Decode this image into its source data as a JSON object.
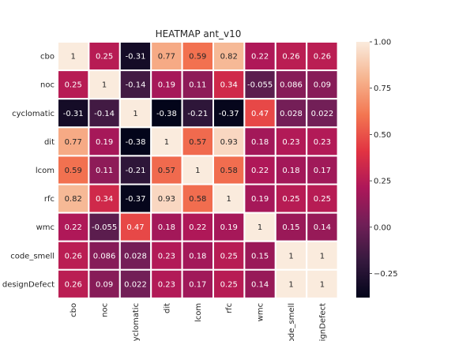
{
  "chart_data": {
    "type": "heatmap",
    "title": "HEATMAP  ant_v10",
    "rows": [
      "cbo",
      "noc",
      "cyclomatic",
      "dit",
      "lcom",
      "rfc",
      "wmc",
      "code_smell",
      "designDefect"
    ],
    "columns": [
      "cbo",
      "noc",
      "cyclomatic",
      "dit",
      "lcom",
      "rfc",
      "wmc",
      "code_smell",
      "designDefect"
    ],
    "column_tick_labels": [
      "cbo",
      "noc",
      "cyclomatic",
      "dit",
      "lcom",
      "rfc",
      "wmc",
      "code_smell",
      "designDefect"
    ],
    "values": [
      [
        1,
        0.25,
        -0.31,
        0.77,
        0.59,
        0.82,
        0.22,
        0.26,
        0.26
      ],
      [
        0.25,
        1,
        -0.14,
        0.19,
        0.11,
        0.34,
        -0.055,
        0.086,
        0.09
      ],
      [
        -0.31,
        -0.14,
        1,
        -0.38,
        -0.21,
        -0.37,
        0.47,
        0.028,
        0.022
      ],
      [
        0.77,
        0.19,
        -0.38,
        1,
        0.57,
        0.93,
        0.18,
        0.23,
        0.23
      ],
      [
        0.59,
        0.11,
        -0.21,
        0.57,
        1,
        0.58,
        0.22,
        0.18,
        0.17
      ],
      [
        0.82,
        0.34,
        -0.37,
        0.93,
        0.58,
        1,
        0.19,
        0.25,
        0.25
      ],
      [
        0.22,
        -0.055,
        0.47,
        0.18,
        0.22,
        0.19,
        1,
        0.15,
        0.14
      ],
      [
        0.26,
        0.086,
        0.028,
        0.23,
        0.18,
        0.25,
        0.15,
        1,
        1
      ],
      [
        0.26,
        0.09,
        0.022,
        0.23,
        0.17,
        0.25,
        0.14,
        1,
        1
      ]
    ],
    "vmin": -0.38,
    "vmax": 1.0,
    "colorbar_ticks": [
      1.0,
      0.75,
      0.5,
      0.25,
      0.0,
      -0.25
    ],
    "colorbar_tick_labels": [
      "1.00",
      "0.75",
      "0.50",
      "0.25",
      "0.00",
      "−0.25"
    ],
    "colormap": "rocket",
    "colormap_stops": [
      "#03051a",
      "#35193e",
      "#701f57",
      "#ad1759",
      "#e13342",
      "#f37651",
      "#f6b48f",
      "#faebdd"
    ],
    "cell_border_color": "#ffffff",
    "grid": false,
    "legend": "colorbar-right"
  }
}
